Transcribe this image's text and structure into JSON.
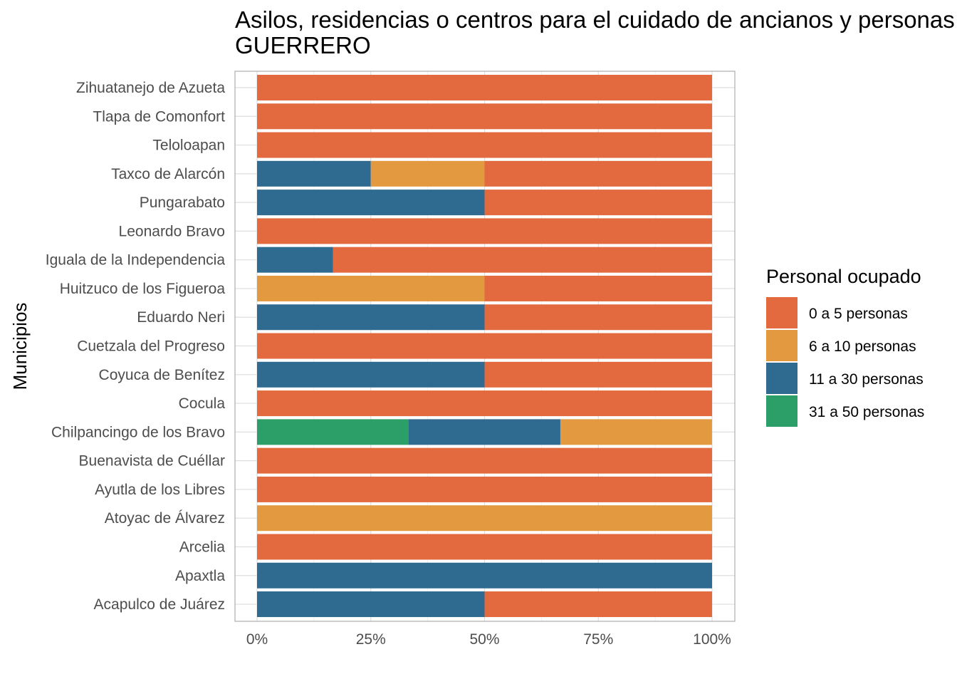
{
  "chart_data": {
    "type": "bar",
    "orientation": "horizontal",
    "stacked": "percent",
    "title_lines": [
      "Asilos, residencias o centros para el cuidado de ancianos y personas",
      "GUERRERO"
    ],
    "xlabel": "",
    "ylabel": "Municipios",
    "xlim": [
      0,
      1
    ],
    "x_ticks": [
      0,
      0.25,
      0.5,
      0.75,
      1
    ],
    "x_tick_labels": [
      "0%",
      "25%",
      "50%",
      "75%",
      "100%"
    ],
    "grid": true,
    "legend_position": "right",
    "categories": [
      "Acapulco de Juárez",
      "Apaxtla",
      "Arcelia",
      "Atoyac de Álvarez",
      "Ayutla de los Libres",
      "Buenavista de Cuéllar",
      "Chilpancingo de los Bravo",
      "Cocula",
      "Coyuca de Benítez",
      "Cuetzala del Progreso",
      "Eduardo Neri",
      "Huitzuco de los Figueroa",
      "Iguala de la Independencia",
      "Leonardo Bravo",
      "Pungarabato",
      "Taxco de Alarcón",
      "Teloloapan",
      "Tlapa de Comonfort",
      "Zihuatanejo de Azueta"
    ],
    "legend": {
      "title": "Personal ocupado",
      "items": [
        "0 a 5 personas",
        "6 a 10 personas",
        "11 a 30 personas",
        "31 a 50 personas"
      ]
    },
    "series": [
      {
        "name": "0 a 5 personas",
        "color": "#E36A3F",
        "values": [
          0.5,
          0,
          1,
          0,
          1,
          1,
          0,
          1,
          0.5,
          1,
          0.5,
          0.5,
          0.8333,
          1,
          0.5,
          0.5,
          1,
          1,
          1
        ]
      },
      {
        "name": "6 a 10 personas",
        "color": "#E3993F",
        "values": [
          0,
          0,
          0,
          1,
          0,
          0,
          0.3333,
          0,
          0,
          0,
          0,
          0.5,
          0,
          0,
          0,
          0.25,
          0,
          0,
          0
        ]
      },
      {
        "name": "11 a 30 personas",
        "color": "#2F6A91",
        "values": [
          0.5,
          1,
          0,
          0,
          0,
          0,
          0.3333,
          0,
          0.5,
          0,
          0.5,
          0,
          0.1667,
          0,
          0.5,
          0.25,
          0,
          0,
          0
        ]
      },
      {
        "name": "31 a 50 personas",
        "color": "#2C9E68",
        "values": [
          0,
          0,
          0,
          0,
          0,
          0,
          0.3333,
          0,
          0,
          0,
          0,
          0,
          0,
          0,
          0,
          0,
          0,
          0,
          0
        ]
      }
    ]
  }
}
